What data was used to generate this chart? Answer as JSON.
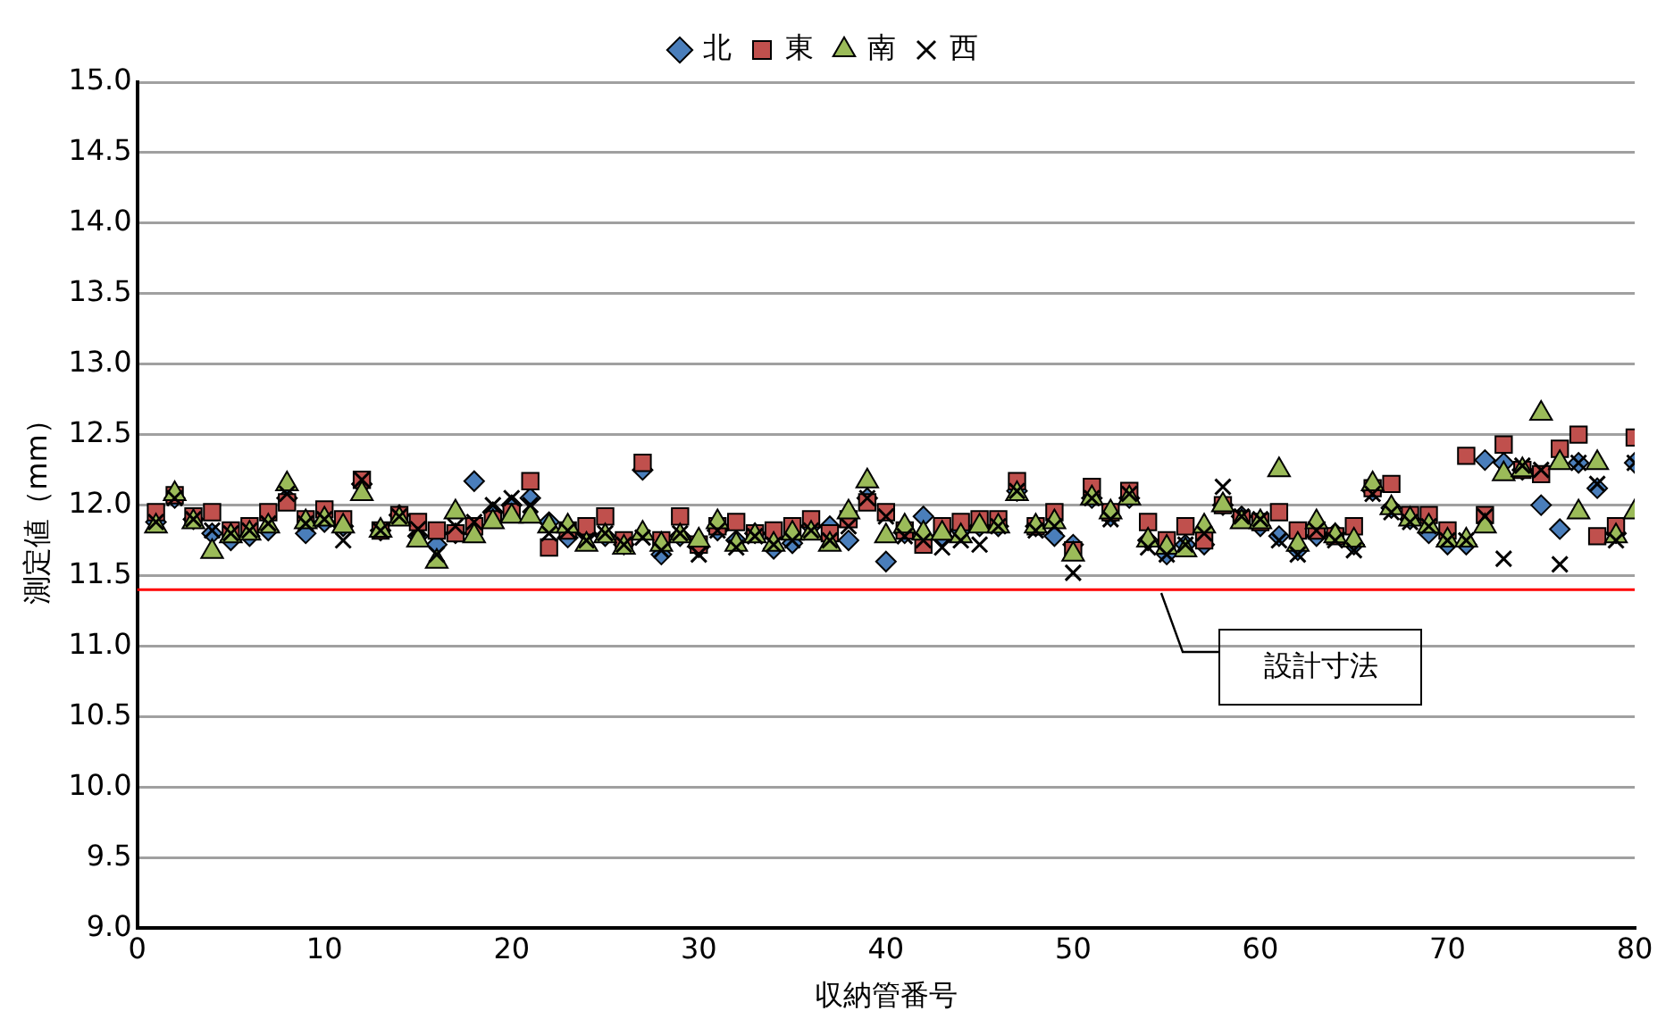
{
  "chart_data": {
    "type": "scatter",
    "xlabel": "収納管番号",
    "ylabel": "測定値（mm）",
    "legend": "top",
    "grid": "y",
    "x": [
      1,
      2,
      3,
      4,
      5,
      6,
      7,
      8,
      9,
      10,
      11,
      12,
      13,
      14,
      15,
      16,
      17,
      18,
      19,
      20,
      21,
      22,
      23,
      24,
      25,
      26,
      27,
      28,
      29,
      30,
      31,
      32,
      33,
      34,
      35,
      36,
      37,
      38,
      39,
      40,
      41,
      42,
      43,
      44,
      45,
      46,
      47,
      48,
      49,
      50,
      51,
      52,
      53,
      54,
      55,
      56,
      57,
      58,
      59,
      60,
      61,
      62,
      63,
      64,
      65,
      66,
      67,
      68,
      69,
      70,
      71,
      72,
      73,
      74,
      75,
      76,
      77,
      78,
      79,
      80
    ],
    "xlim": [
      0,
      80
    ],
    "xticks": [
      0,
      10,
      20,
      30,
      40,
      50,
      60,
      70,
      80
    ],
    "ylim": [
      9,
      15
    ],
    "yticks": [
      {
        "value": 9,
        "label": "9.0"
      },
      9.5,
      {
        "value": 10,
        "label": "10.0"
      },
      10.5,
      {
        "value": 11,
        "label": "11.0"
      },
      11.5,
      {
        "value": 12,
        "label": "12.0"
      },
      12.5,
      {
        "value": 13,
        "label": "13.0"
      },
      13.5,
      {
        "value": 14,
        "label": "14.0"
      },
      14.5,
      {
        "value": 15,
        "label": "15.0"
      }
    ],
    "series": [
      {
        "name": "北",
        "color": "#4a7ebb",
        "marker": "diamond",
        "values": [
          11.88,
          12.05,
          11.9,
          11.8,
          11.75,
          11.78,
          11.82,
          12.05,
          11.8,
          11.88,
          11.85,
          12.15,
          11.82,
          11.93,
          11.78,
          11.72,
          11.8,
          12.17,
          11.95,
          12.0,
          12.05,
          11.88,
          11.77,
          11.8,
          11.78,
          11.72,
          12.25,
          11.65,
          11.78,
          11.7,
          11.82,
          11.75,
          11.8,
          11.69,
          11.73,
          11.85,
          11.85,
          11.75,
          12.05,
          11.6,
          11.8,
          11.92,
          11.78,
          11.82,
          11.85,
          11.85,
          12.1,
          11.85,
          11.78,
          11.72,
          12.05,
          11.92,
          12.05,
          11.75,
          11.65,
          11.72,
          11.72,
          12.0,
          11.92,
          11.85,
          11.78,
          11.68,
          11.78,
          11.8,
          11.72,
          12.1,
          11.98,
          11.9,
          11.8,
          11.72,
          11.72,
          12.32,
          12.3,
          12.25,
          12.0,
          11.83,
          12.3,
          12.12,
          11.8,
          12.3
        ]
      },
      {
        "name": "東",
        "color": "#c0504d",
        "marker": "square",
        "values": [
          11.95,
          12.07,
          11.92,
          11.95,
          11.82,
          11.85,
          11.95,
          12.02,
          11.9,
          11.97,
          11.9,
          12.18,
          11.82,
          11.93,
          11.88,
          11.82,
          11.8,
          11.85,
          11.9,
          11.95,
          12.17,
          11.7,
          11.82,
          11.85,
          11.92,
          11.75,
          12.3,
          11.75,
          11.92,
          11.72,
          11.85,
          11.88,
          11.8,
          11.82,
          11.85,
          11.9,
          11.8,
          11.9,
          12.02,
          11.95,
          11.82,
          11.72,
          11.85,
          11.88,
          11.9,
          11.9,
          12.17,
          11.85,
          11.95,
          11.68,
          12.13,
          11.95,
          12.1,
          11.88,
          11.75,
          11.85,
          11.75,
          12.0,
          11.9,
          11.88,
          11.95,
          11.82,
          11.82,
          11.78,
          11.85,
          12.12,
          12.15,
          11.93,
          11.93,
          11.82,
          12.35,
          11.93,
          12.43,
          12.25,
          12.22,
          12.4,
          12.5,
          11.78,
          11.85,
          12.48
        ]
      },
      {
        "name": "南",
        "color": "#9bbb59",
        "marker": "triangle",
        "values": [
          11.85,
          12.08,
          11.88,
          11.67,
          11.78,
          11.8,
          11.85,
          12.15,
          11.88,
          11.9,
          11.85,
          12.08,
          11.82,
          11.9,
          11.75,
          11.6,
          11.95,
          11.78,
          11.88,
          11.92,
          11.92,
          11.85,
          11.85,
          11.72,
          11.78,
          11.7,
          11.8,
          11.72,
          11.78,
          11.75,
          11.88,
          11.72,
          11.78,
          11.72,
          11.8,
          11.8,
          11.72,
          11.95,
          12.17,
          11.78,
          11.85,
          11.8,
          11.8,
          11.78,
          11.85,
          11.85,
          12.08,
          11.85,
          11.88,
          11.65,
          12.05,
          11.95,
          12.05,
          11.75,
          11.7,
          11.68,
          11.85,
          12.0,
          11.88,
          11.88,
          12.25,
          11.72,
          11.88,
          11.78,
          11.75,
          12.15,
          11.98,
          11.9,
          11.85,
          11.75,
          11.75,
          11.85,
          12.22,
          12.25,
          12.65,
          12.3,
          11.95,
          12.3,
          11.78,
          11.95
        ]
      },
      {
        "name": "西",
        "color": "#000000",
        "marker": "cross",
        "values": [
          11.88,
          12.05,
          11.9,
          11.82,
          11.8,
          11.82,
          11.87,
          12.08,
          11.87,
          11.9,
          11.75,
          12.18,
          11.82,
          11.92,
          11.83,
          11.65,
          11.85,
          11.88,
          12.0,
          12.05,
          12.0,
          11.8,
          11.82,
          11.75,
          11.8,
          11.72,
          11.77,
          11.68,
          11.8,
          11.65,
          11.82,
          11.7,
          11.78,
          11.72,
          11.75,
          11.82,
          11.75,
          11.85,
          12.05,
          11.92,
          11.78,
          11.75,
          11.7,
          11.75,
          11.72,
          11.85,
          12.1,
          11.82,
          11.85,
          11.52,
          12.05,
          11.9,
          12.08,
          11.7,
          11.65,
          11.72,
          11.8,
          12.13,
          11.92,
          11.9,
          11.75,
          11.65,
          11.82,
          11.75,
          11.68,
          12.08,
          11.95,
          11.88,
          11.85,
          11.75,
          11.75,
          11.92,
          11.62,
          12.28,
          12.25,
          11.58,
          12.3,
          12.15,
          11.75,
          12.3
        ]
      }
    ],
    "ref_lines": [
      {
        "axis": "y",
        "value": 11.4,
        "label": "設計寸法",
        "color": "#ff0000"
      }
    ]
  }
}
